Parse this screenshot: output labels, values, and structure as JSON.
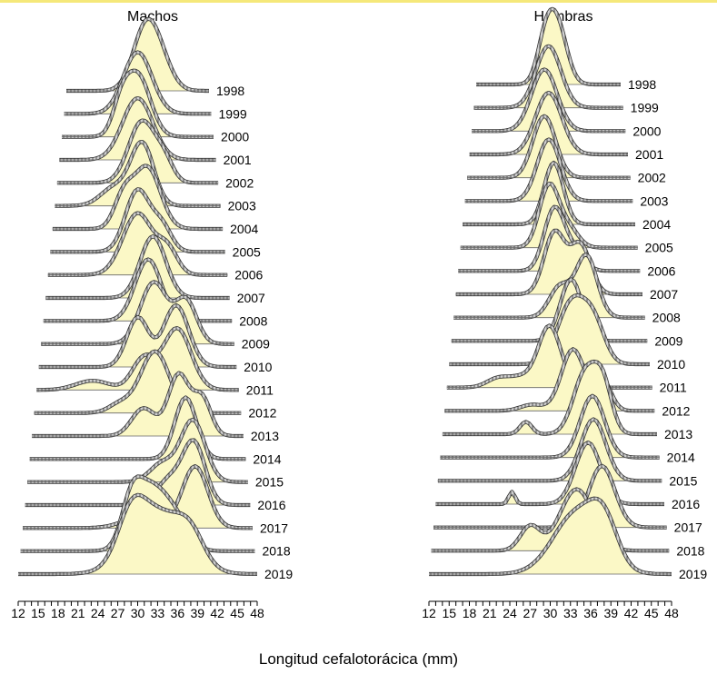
{
  "chart_data": [
    {
      "type": "area",
      "title": "Machos",
      "xlabel": "Longitud cefalotorácica (mm)",
      "xticks": [
        12,
        15,
        18,
        21,
        24,
        27,
        30,
        33,
        36,
        39,
        42,
        45,
        48
      ],
      "xlim": [
        12,
        48
      ],
      "series_order": "back-to-front",
      "fill_color": "#fbf8c6",
      "series": [
        {
          "name": "1998",
          "peak_x": 32,
          "spread": 3.2,
          "secondary": [
            [
              36,
              0.35,
              3
            ]
          ]
        },
        {
          "name": "1999",
          "peak_x": 30,
          "spread": 3.5,
          "secondary": []
        },
        {
          "name": "2000",
          "peak_x": 30,
          "spread": 3.0,
          "secondary": [
            [
              26,
              0.4,
              2
            ]
          ]
        },
        {
          "name": "2001",
          "peak_x": 30,
          "spread": 3.5,
          "secondary": []
        },
        {
          "name": "2002",
          "peak_x": 31,
          "spread": 3.0,
          "secondary": [
            [
              36,
              0.3,
              2
            ]
          ]
        },
        {
          "name": "2003",
          "peak_x": 31,
          "spread": 2.5,
          "secondary": [
            [
              25,
              0.3,
              3
            ]
          ]
        },
        {
          "name": "2004",
          "peak_x": 32,
          "spread": 2.8,
          "secondary": [
            [
              27,
              0.5,
              2
            ]
          ]
        },
        {
          "name": "2005",
          "peak_x": 30,
          "spread": 2.5,
          "secondary": [
            [
              35,
              0.4,
              2
            ]
          ]
        },
        {
          "name": "2006",
          "peak_x": 30,
          "spread": 3.0,
          "secondary": [
            [
              36,
              0.4,
              2
            ]
          ]
        },
        {
          "name": "2007",
          "peak_x": 33,
          "spread": 2.5,
          "secondary": []
        },
        {
          "name": "2008",
          "peak_x": 32,
          "spread": 2.5,
          "secondary": []
        },
        {
          "name": "2009",
          "peak_x": 33,
          "spread": 2.5,
          "secondary": [
            [
              39,
              0.7,
              2
            ]
          ]
        },
        {
          "name": "2010",
          "peak_x": 37,
          "spread": 2.3,
          "secondary": [
            [
              30,
              0.8,
              2
            ]
          ]
        },
        {
          "name": "2011",
          "peak_x": 37,
          "spread": 2.5,
          "secondary": [
            [
              22,
              0.15,
              3
            ],
            [
              31,
              0.5,
              2
            ]
          ]
        },
        {
          "name": "2012",
          "peak_x": 33,
          "spread": 2.5,
          "secondary": [
            [
              27,
              0.15,
              2
            ]
          ]
        },
        {
          "name": "2013",
          "peak_x": 37,
          "spread": 1.8,
          "secondary": [
            [
              31,
              0.45,
              2
            ],
            [
              41,
              0.6,
              1.5
            ]
          ]
        },
        {
          "name": "2014",
          "peak_x": 38,
          "spread": 1.8,
          "secondary": []
        },
        {
          "name": "2015",
          "peak_x": 39,
          "spread": 2.0,
          "secondary": [
            [
              34,
              0.3,
              2
            ]
          ]
        },
        {
          "name": "2016",
          "peak_x": 39,
          "spread": 1.8,
          "secondary": [
            [
              35,
              0.4,
              2
            ]
          ]
        },
        {
          "name": "2017",
          "peak_x": 39,
          "spread": 2.0,
          "secondary": [
            [
              31,
              0.2,
              3
            ]
          ]
        },
        {
          "name": "2018",
          "peak_x": 32,
          "spread": 2.5,
          "secondary": [
            [
              29,
              0.6,
              1.5
            ],
            [
              36,
              0.4,
              2
            ]
          ]
        },
        {
          "name": "2019",
          "peak_x": 33,
          "spread": 4.0,
          "secondary": [
            [
              29,
              0.6,
              2
            ],
            [
              38,
              0.4,
              2
            ]
          ]
        }
      ]
    },
    {
      "type": "area",
      "title": "Hembras",
      "xlabel": "Longitud cefalotorácica (mm)",
      "xticks": [
        12,
        15,
        18,
        21,
        24,
        27,
        30,
        33,
        36,
        39,
        42,
        45,
        48
      ],
      "xlim": [
        12,
        48
      ],
      "series_order": "back-to-front",
      "fill_color": "#fbf8c6",
      "series": [
        {
          "name": "1998",
          "peak_x": 32,
          "spread": 2.5,
          "secondary": [
            [
              29,
              0.5,
              2
            ]
          ]
        },
        {
          "name": "1999",
          "peak_x": 30,
          "spread": 3.0,
          "secondary": []
        },
        {
          "name": "2000",
          "peak_x": 29,
          "spread": 3.0,
          "secondary": []
        },
        {
          "name": "2001",
          "peak_x": 30,
          "spread": 3.0,
          "secondary": []
        },
        {
          "name": "2002",
          "peak_x": 29,
          "spread": 2.5,
          "secondary": []
        },
        {
          "name": "2003",
          "peak_x": 30,
          "spread": 2.5,
          "secondary": []
        },
        {
          "name": "2004",
          "peak_x": 31,
          "spread": 2.0,
          "secondary": []
        },
        {
          "name": "2005",
          "peak_x": 30,
          "spread": 2.0,
          "secondary": [
            [
              34,
              0.3,
              2
            ]
          ]
        },
        {
          "name": "2006",
          "peak_x": 31,
          "spread": 2.0,
          "secondary": [
            [
              35,
              0.3,
              2
            ]
          ]
        },
        {
          "name": "2007",
          "peak_x": 31,
          "spread": 2.0,
          "secondary": [
            [
              36,
              0.8,
              2
            ]
          ]
        },
        {
          "name": "2008",
          "peak_x": 37,
          "spread": 2.0,
          "secondary": [
            [
              32,
              0.5,
              2
            ]
          ]
        },
        {
          "name": "2009",
          "peak_x": 34,
          "spread": 2.0,
          "secondary": []
        },
        {
          "name": "2010",
          "peak_x": 34,
          "spread": 2.5,
          "secondary": [
            [
              38,
              0.6,
              2
            ]
          ]
        },
        {
          "name": "2011",
          "peak_x": 30,
          "spread": 2.0,
          "secondary": [
            [
              21,
              0.15,
              2
            ],
            [
              25,
              0.15,
              2
            ]
          ]
        },
        {
          "name": "2012",
          "peak_x": 34,
          "spread": 2.0,
          "secondary": [
            [
              39,
              0.5,
              1.5
            ],
            [
              27,
              0.1,
              2
            ]
          ]
        },
        {
          "name": "2013",
          "peak_x": 36,
          "spread": 2.0,
          "secondary": [
            [
              39,
              0.7,
              1.5
            ],
            [
              26,
              0.2,
              1
            ]
          ]
        },
        {
          "name": "2014",
          "peak_x": 37,
          "spread": 2.0,
          "secondary": []
        },
        {
          "name": "2015",
          "peak_x": 37,
          "spread": 2.0,
          "secondary": []
        },
        {
          "name": "2016",
          "peak_x": 36,
          "spread": 2.0,
          "secondary": [
            [
              24,
              0.2,
              0.5
            ]
          ]
        },
        {
          "name": "2017",
          "peak_x": 38,
          "spread": 2.0,
          "secondary": []
        },
        {
          "name": "2018",
          "peak_x": 34,
          "spread": 2.5,
          "secondary": [
            [
              27,
              0.4,
              1.5
            ]
          ]
        },
        {
          "name": "2019",
          "peak_x": 34,
          "spread": 3.5,
          "secondary": [
            [
              38,
              0.6,
              2
            ]
          ]
        }
      ]
    }
  ]
}
